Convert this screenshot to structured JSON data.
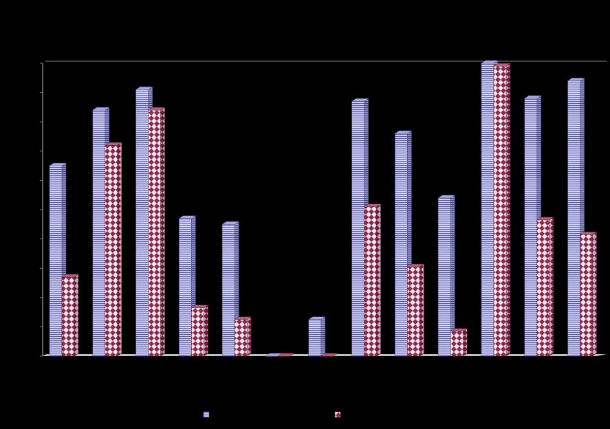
{
  "chart_data": {
    "type": "bar",
    "style": "3d-clustered",
    "title": "",
    "xlabel": "",
    "ylabel": "",
    "categories": [
      "",
      "",
      "",
      "",
      "",
      "",
      "",
      "",
      "",
      "",
      "",
      "",
      ""
    ],
    "ylim": [
      0,
      100
    ],
    "grid": false,
    "legend": "bottom",
    "series": [
      {
        "name": "",
        "pattern": "horizontal-stripes",
        "color": "#c8c8f0",
        "stripe_color": "#5050a0",
        "values": [
          65,
          84,
          91,
          47,
          45,
          0,
          12.5,
          87,
          76,
          54,
          100,
          88,
          94
        ]
      },
      {
        "name": "",
        "pattern": "diamonds",
        "color": "#903050",
        "fill_color": "#ffffff",
        "values": [
          27,
          72,
          84,
          16.5,
          12.5,
          0,
          0,
          51,
          30.5,
          8.5,
          99,
          46.5,
          41.5
        ]
      }
    ]
  },
  "colors": {
    "background": "#000000",
    "axis": "#808080",
    "floor": "#c0c0c0"
  }
}
